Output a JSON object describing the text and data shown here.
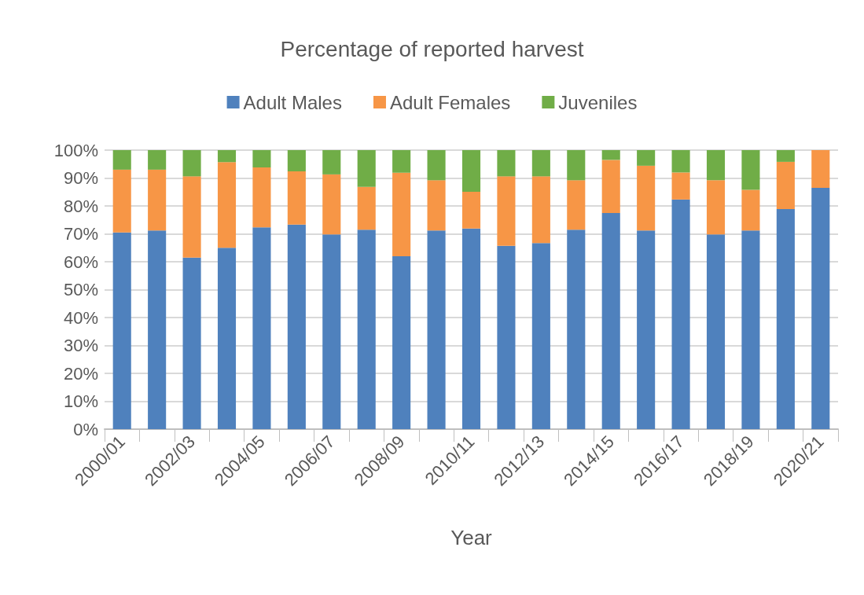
{
  "chart_data": {
    "type": "bar",
    "stacked": true,
    "title": "Percentage of reported harvest",
    "xlabel": "Year",
    "categories": [
      "2000/01",
      null,
      "2002/03",
      null,
      "2004/05",
      null,
      "2006/07",
      null,
      "2008/09",
      null,
      "2010/11",
      null,
      "2012/13",
      null,
      "2014/15",
      null,
      "2016/17",
      null,
      "2018/19",
      null,
      "2020/21"
    ],
    "series": [
      {
        "name": "Adult Males",
        "color": "#4f81bd",
        "values": [
          70.5,
          71.2,
          61.5,
          65.0,
          72.3,
          73.3,
          69.8,
          71.5,
          62.0,
          71.2,
          71.9,
          65.7,
          66.7,
          71.5,
          77.5,
          71.2,
          82.3,
          69.8,
          71.2,
          78.9,
          86.5
        ]
      },
      {
        "name": "Adult Females",
        "color": "#f79646",
        "values": [
          22.5,
          21.8,
          29.1,
          30.7,
          21.5,
          19.1,
          21.5,
          15.3,
          29.9,
          18.0,
          13.2,
          24.9,
          23.9,
          17.7,
          19.0,
          23.2,
          9.7,
          19.4,
          14.6,
          16.9,
          13.5
        ]
      },
      {
        "name": "Juveniles",
        "color": "#70ad47",
        "values": [
          7.0,
          7.0,
          9.4,
          4.3,
          6.2,
          7.6,
          8.7,
          13.2,
          8.1,
          10.8,
          14.9,
          9.4,
          9.4,
          10.8,
          3.5,
          5.6,
          8.0,
          10.8,
          14.2,
          4.2,
          0
        ]
      }
    ],
    "ylim": [
      0,
      100
    ],
    "yticks": [
      {
        "value": 0,
        "label": "0%"
      },
      {
        "value": 10,
        "label": "10%"
      },
      {
        "value": 20,
        "label": "20%"
      },
      {
        "value": 30,
        "label": "30%"
      },
      {
        "value": 40,
        "label": "40%"
      },
      {
        "value": 50,
        "label": "50%"
      },
      {
        "value": 60,
        "label": "60%"
      },
      {
        "value": 70,
        "label": "70%"
      },
      {
        "value": 80,
        "label": "80%"
      },
      {
        "value": 90,
        "label": "90%"
      },
      {
        "value": 100,
        "label": "100%"
      }
    ],
    "grid": "y",
    "legend": "top"
  }
}
